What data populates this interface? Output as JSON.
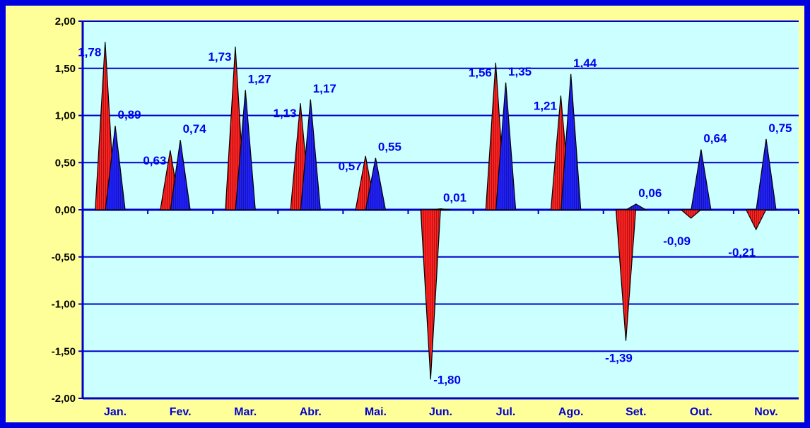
{
  "colors": {
    "background": "#ffff99",
    "border": "#0000e0",
    "plot_area": "#ccffff",
    "gridline": "#0000cc",
    "series_1": "#ff2020",
    "series_2": "#2020ff",
    "outline": "#000000",
    "label": "#0000ee"
  },
  "chart_data": {
    "type": "area",
    "categories": [
      "Jan.",
      "Fev.",
      "Mar.",
      "Abr.",
      "Mai.",
      "Jun.",
      "Jul.",
      "Ago.",
      "Set.",
      "Out.",
      "Nov."
    ],
    "series": [
      {
        "values": [
          1.78,
          0.63,
          1.73,
          1.13,
          0.57,
          -1.8,
          1.56,
          1.21,
          -1.39,
          -0.09,
          -0.21
        ],
        "labels": [
          "1,78",
          "0,63",
          "1,73",
          "1,13",
          "0,57",
          "-1,80",
          "1,56",
          "1,21",
          "-1,39",
          "-0,09",
          "-0,21"
        ]
      },
      {
        "values": [
          0.89,
          0.74,
          1.27,
          1.17,
          0.55,
          0.01,
          1.35,
          1.44,
          0.06,
          0.64,
          0.75
        ],
        "labels": [
          "0,89",
          "0,74",
          "1,27",
          "1,17",
          "0,55",
          "0,01",
          "1,35",
          "1,44",
          "0,06",
          "0,64",
          "0,75"
        ]
      }
    ],
    "ylim": [
      -2.0,
      2.0
    ],
    "yticks": [
      "2,00",
      "1,50",
      "1,00",
      "0,50",
      "0,00",
      "-0,50",
      "-1,00",
      "-1,50",
      "-2,00"
    ],
    "title": "",
    "xlabel": "",
    "ylabel": "",
    "grid": true,
    "legend": "none"
  }
}
